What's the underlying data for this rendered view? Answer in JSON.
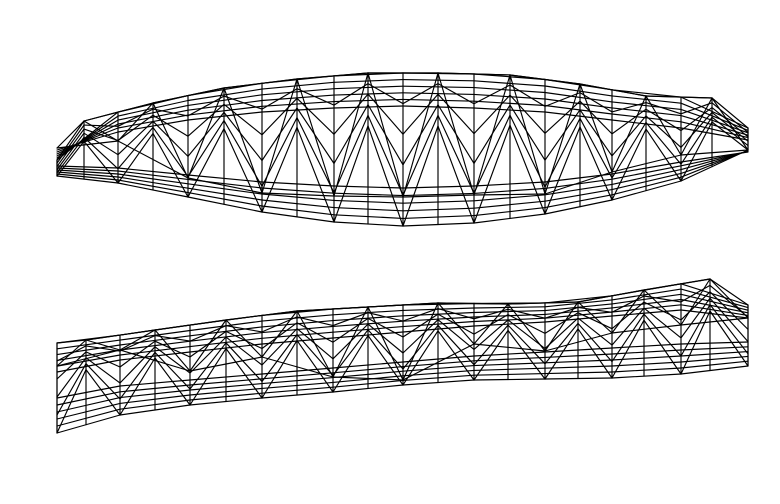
{
  "figure": {
    "background_color": "#ffffff",
    "line_color": "#000000",
    "structures": [
      {
        "name": "upper-truss-wireframe",
        "shape": "lens-shaped space truss",
        "panels": 10,
        "layers": 5
      },
      {
        "name": "lower-truss-wireframe",
        "shape": "curved space truss",
        "panels": 10,
        "layers": 5
      }
    ]
  }
}
